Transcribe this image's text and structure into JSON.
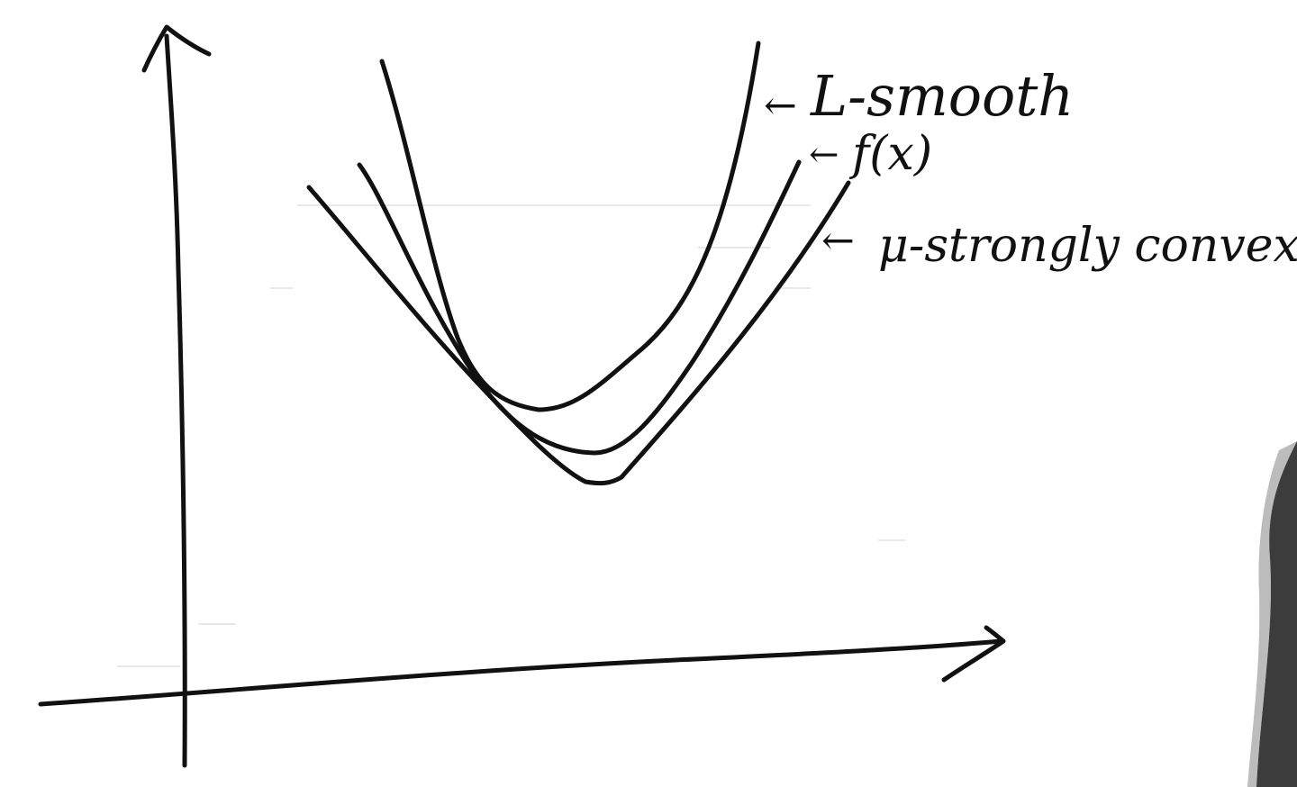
{
  "diagram": {
    "background": "#ffffff",
    "ink": "#111111",
    "curves": [
      {
        "id": "l-smooth",
        "label": "L-smooth"
      },
      {
        "id": "f",
        "label": "f(x)"
      },
      {
        "id": "mu-convex",
        "label": "μ-strongly convex"
      }
    ],
    "arrow_glyph": "←"
  }
}
